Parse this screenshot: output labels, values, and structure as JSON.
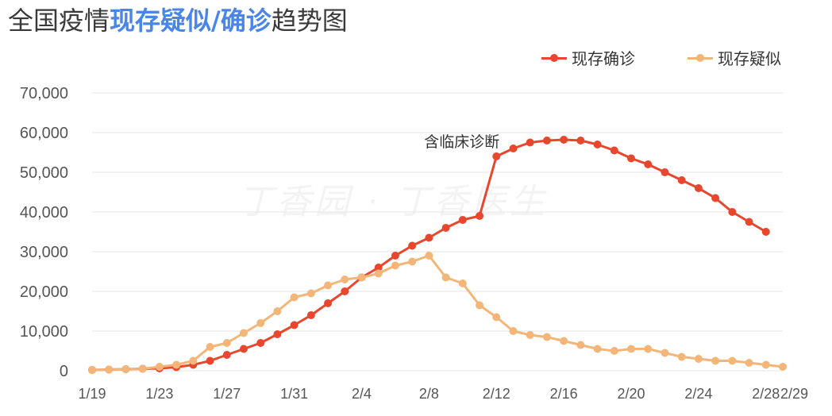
{
  "title": {
    "prefix": "全国疫情",
    "highlight_1": "现存疑似",
    "slash": "/",
    "highlight_2": "确诊",
    "suffix": "趋势图",
    "highlight_color": "#4a86e8"
  },
  "watermark": "丁香园 · 丁香医生",
  "chart_data": {
    "type": "line",
    "categories": [
      "1/19",
      "1/20",
      "1/21",
      "1/22",
      "1/23",
      "1/24",
      "1/25",
      "1/26",
      "1/27",
      "1/28",
      "1/29",
      "1/30",
      "1/31",
      "2/1",
      "2/2",
      "2/3",
      "2/4",
      "2/5",
      "2/6",
      "2/7",
      "2/8",
      "2/9",
      "2/10",
      "2/11",
      "2/12",
      "2/13",
      "2/14",
      "2/15",
      "2/16",
      "2/17",
      "2/18",
      "2/19",
      "2/20",
      "2/21",
      "2/22",
      "2/23",
      "2/24",
      "2/25",
      "2/26",
      "2/27",
      "2/28",
      "2/29"
    ],
    "xtick_labels": [
      "1/19",
      "1/23",
      "1/27",
      "1/31",
      "2/4",
      "2/8",
      "2/12",
      "2/16",
      "2/20",
      "2/24",
      "2/28",
      "2/29"
    ],
    "ylim": [
      0,
      70000
    ],
    "yticks": [
      0,
      10000,
      20000,
      30000,
      40000,
      50000,
      60000,
      70000
    ],
    "ytick_labels": [
      "0",
      "10,000",
      "20,000",
      "30,000",
      "40,000",
      "50,000",
      "60,000",
      "70,000"
    ],
    "grid": true,
    "legend_position": "top-right",
    "series": [
      {
        "name": "现存确诊",
        "color": "#e8472e",
        "values": [
          200,
          300,
          400,
          500,
          600,
          900,
          1500,
          2500,
          4000,
          5500,
          7000,
          9200,
          11500,
          14000,
          17000,
          20000,
          23500,
          26000,
          29000,
          31500,
          33500,
          36000,
          38000,
          39000,
          54000,
          56000,
          57500,
          58000,
          58200,
          58000,
          57000,
          55500,
          53500,
          52000,
          50000,
          48000,
          46000,
          43500,
          40000,
          37500,
          35000,
          null
        ]
      },
      {
        "name": "现存疑似",
        "color": "#f4b578",
        "values": [
          200,
          300,
          400,
          500,
          1000,
          1500,
          2500,
          6000,
          7000,
          9500,
          12000,
          15000,
          18500,
          19500,
          21500,
          23000,
          23500,
          24500,
          26500,
          27500,
          29000,
          23500,
          22000,
          16500,
          13500,
          10000,
          9000,
          8500,
          7500,
          6500,
          5500,
          5000,
          5500,
          5500,
          4500,
          3500,
          3000,
          2500,
          2500,
          2000,
          1500,
          1000
        ]
      }
    ],
    "annotations": [
      {
        "text": "含临床诊断",
        "x": "2/12",
        "y": 54000
      }
    ]
  }
}
